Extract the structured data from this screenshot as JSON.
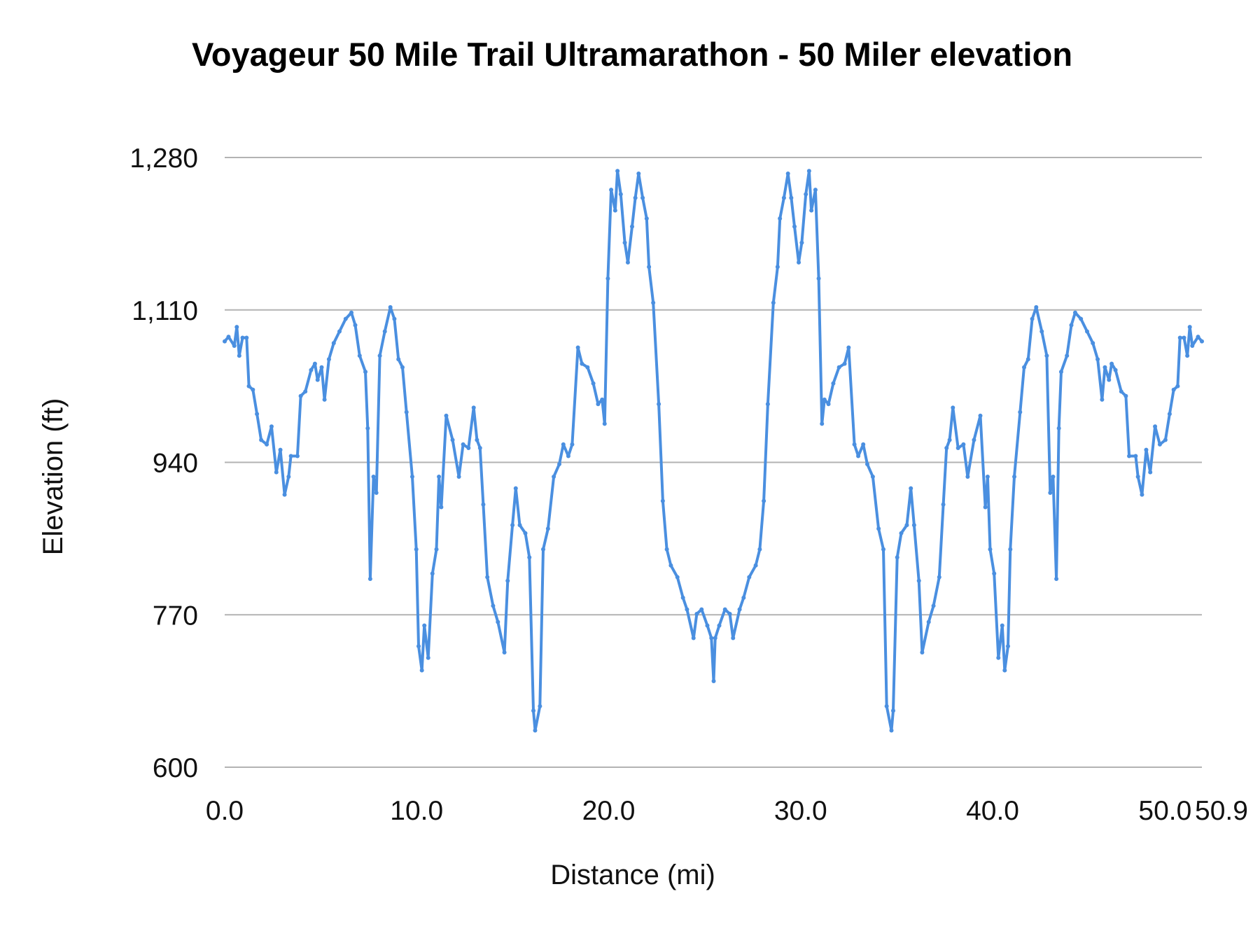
{
  "chart_data": {
    "type": "line",
    "title": "Voyageur 50 Mile Trail Ultramarathon - 50 Miler elevation",
    "xlabel": "Distance (mi)",
    "ylabel": "Elevation (ft)",
    "xlim": [
      0,
      50.9
    ],
    "ylim": [
      600,
      1280
    ],
    "x_ticks": [
      "0.0",
      "10.0",
      "20.0",
      "30.0",
      "40.0",
      "50.0",
      "50.9"
    ],
    "x_tick_values": [
      0,
      10,
      20,
      30,
      40,
      50,
      50.9
    ],
    "y_ticks": [
      "600",
      "770",
      "940",
      "1,110",
      "1,280"
    ],
    "y_tick_values": [
      600,
      770,
      940,
      1110,
      1280
    ],
    "grid": "horizontal",
    "legend": "none",
    "line_color": "#4a8fe0",
    "grid_color": "#b3b3b3",
    "points": [
      [
        0,
        1075
      ],
      [
        0.2,
        1080
      ],
      [
        0.5,
        1070
      ],
      [
        0.63,
        1091
      ],
      [
        0.76,
        1059
      ],
      [
        0.93,
        1079
      ],
      [
        1.14,
        1079
      ],
      [
        1.26,
        1025
      ],
      [
        1.47,
        1021
      ],
      [
        1.68,
        994
      ],
      [
        1.9,
        965
      ],
      [
        2.19,
        960
      ],
      [
        2.44,
        980
      ],
      [
        2.69,
        929
      ],
      [
        2.9,
        954
      ],
      [
        3.12,
        904
      ],
      [
        3.33,
        924
      ],
      [
        3.45,
        947
      ],
      [
        3.79,
        947
      ],
      [
        3.96,
        1014
      ],
      [
        4.2,
        1019
      ],
      [
        4.5,
        1043
      ],
      [
        4.7,
        1050
      ],
      [
        4.84,
        1032
      ],
      [
        5.05,
        1046
      ],
      [
        5.2,
        1010
      ],
      [
        5.43,
        1055
      ],
      [
        5.68,
        1073
      ],
      [
        5.98,
        1086
      ],
      [
        6.3,
        1100
      ],
      [
        6.6,
        1107
      ],
      [
        6.8,
        1093
      ],
      [
        7.03,
        1059
      ],
      [
        7.33,
        1041
      ],
      [
        7.45,
        978
      ],
      [
        7.58,
        810
      ],
      [
        7.75,
        924
      ],
      [
        7.9,
        906
      ],
      [
        8.08,
        1059
      ],
      [
        8.34,
        1086
      ],
      [
        8.63,
        1113
      ],
      [
        8.84,
        1100
      ],
      [
        9.05,
        1055
      ],
      [
        9.26,
        1046
      ],
      [
        9.47,
        996
      ],
      [
        9.77,
        924
      ],
      [
        9.98,
        843
      ],
      [
        10.1,
        735
      ],
      [
        10.27,
        708
      ],
      [
        10.4,
        758
      ],
      [
        10.6,
        722
      ],
      [
        10.82,
        816
      ],
      [
        11.03,
        843
      ],
      [
        11.16,
        924
      ],
      [
        11.28,
        890
      ],
      [
        11.54,
        992
      ],
      [
        11.87,
        965
      ],
      [
        12.2,
        924
      ],
      [
        12.42,
        960
      ],
      [
        12.7,
        956
      ],
      [
        12.97,
        1001
      ],
      [
        13.14,
        965
      ],
      [
        13.3,
        956
      ],
      [
        13.47,
        893
      ],
      [
        13.68,
        812
      ],
      [
        13.98,
        780
      ],
      [
        14.23,
        762
      ],
      [
        14.57,
        728
      ],
      [
        14.74,
        808
      ],
      [
        14.99,
        870
      ],
      [
        15.16,
        911
      ],
      [
        15.37,
        870
      ],
      [
        15.66,
        861
      ],
      [
        15.87,
        834
      ],
      [
        16.08,
        663
      ],
      [
        16.17,
        641
      ],
      [
        16.42,
        668
      ],
      [
        16.59,
        843
      ],
      [
        16.84,
        866
      ],
      [
        17.14,
        924
      ],
      [
        17.43,
        938
      ],
      [
        17.64,
        960
      ],
      [
        17.9,
        947
      ],
      [
        18.1,
        960
      ],
      [
        18.4,
        1068
      ],
      [
        18.61,
        1050
      ],
      [
        18.9,
        1046
      ],
      [
        19.2,
        1028
      ],
      [
        19.45,
        1005
      ],
      [
        19.66,
        1010
      ],
      [
        19.79,
        983
      ],
      [
        19.96,
        1145
      ],
      [
        20.13,
        1244
      ],
      [
        20.34,
        1221
      ],
      [
        20.46,
        1265
      ],
      [
        20.63,
        1239
      ],
      [
        20.84,
        1185
      ],
      [
        21.0,
        1163
      ],
      [
        21.22,
        1203
      ],
      [
        21.39,
        1235
      ],
      [
        21.56,
        1262
      ],
      [
        21.77,
        1235
      ],
      [
        21.98,
        1212
      ],
      [
        22.1,
        1158
      ],
      [
        22.32,
        1118
      ],
      [
        22.61,
        1005
      ],
      [
        22.82,
        897
      ],
      [
        23.03,
        843
      ],
      [
        23.24,
        825
      ],
      [
        23.58,
        812
      ],
      [
        23.87,
        789
      ],
      [
        24.08,
        776
      ],
      [
        24.42,
        744
      ],
      [
        24.59,
        771
      ],
      [
        24.84,
        776
      ],
      [
        25.14,
        758
      ],
      [
        25.35,
        744
      ],
      [
        25.47,
        696
      ],
      [
        25.55,
        744
      ],
      [
        25.76,
        758
      ],
      [
        26.06,
        776
      ],
      [
        26.31,
        771
      ],
      [
        26.48,
        744
      ],
      [
        26.82,
        776
      ],
      [
        27.03,
        789
      ],
      [
        27.32,
        812
      ],
      [
        27.66,
        825
      ],
      [
        27.87,
        843
      ],
      [
        28.08,
        897
      ],
      [
        28.29,
        1005
      ],
      [
        28.58,
        1118
      ],
      [
        28.8,
        1158
      ],
      [
        28.92,
        1212
      ],
      [
        29.13,
        1235
      ],
      [
        29.34,
        1262
      ],
      [
        29.51,
        1235
      ],
      [
        29.68,
        1203
      ],
      [
        29.9,
        1163
      ],
      [
        30.06,
        1185
      ],
      [
        30.27,
        1239
      ],
      [
        30.44,
        1265
      ],
      [
        30.56,
        1221
      ],
      [
        30.77,
        1244
      ],
      [
        30.94,
        1145
      ],
      [
        31.11,
        983
      ],
      [
        31.24,
        1010
      ],
      [
        31.45,
        1005
      ],
      [
        31.7,
        1028
      ],
      [
        32.0,
        1046
      ],
      [
        32.29,
        1050
      ],
      [
        32.5,
        1068
      ],
      [
        32.8,
        960
      ],
      [
        33.0,
        947
      ],
      [
        33.26,
        960
      ],
      [
        33.47,
        938
      ],
      [
        33.76,
        924
      ],
      [
        34.06,
        866
      ],
      [
        34.31,
        843
      ],
      [
        34.48,
        668
      ],
      [
        34.73,
        641
      ],
      [
        34.82,
        663
      ],
      [
        35.03,
        834
      ],
      [
        35.24,
        861
      ],
      [
        35.53,
        870
      ],
      [
        35.74,
        911
      ],
      [
        35.91,
        870
      ],
      [
        36.16,
        808
      ],
      [
        36.33,
        728
      ],
      [
        36.67,
        762
      ],
      [
        36.92,
        780
      ],
      [
        37.22,
        812
      ],
      [
        37.43,
        893
      ],
      [
        37.6,
        956
      ],
      [
        37.76,
        965
      ],
      [
        37.93,
        1001
      ],
      [
        38.2,
        956
      ],
      [
        38.48,
        960
      ],
      [
        38.7,
        924
      ],
      [
        39.03,
        965
      ],
      [
        39.36,
        992
      ],
      [
        39.62,
        890
      ],
      [
        39.74,
        924
      ],
      [
        39.87,
        843
      ],
      [
        40.08,
        816
      ],
      [
        40.3,
        722
      ],
      [
        40.5,
        758
      ],
      [
        40.63,
        708
      ],
      [
        40.8,
        735
      ],
      [
        40.92,
        843
      ],
      [
        41.13,
        924
      ],
      [
        41.43,
        996
      ],
      [
        41.64,
        1046
      ],
      [
        41.85,
        1055
      ],
      [
        42.06,
        1100
      ],
      [
        42.27,
        1113
      ],
      [
        42.56,
        1086
      ],
      [
        42.82,
        1059
      ],
      [
        43.0,
        906
      ],
      [
        43.15,
        924
      ],
      [
        43.32,
        810
      ],
      [
        43.45,
        978
      ],
      [
        43.57,
        1041
      ],
      [
        43.87,
        1059
      ],
      [
        44.1,
        1093
      ],
      [
        44.3,
        1107
      ],
      [
        44.6,
        1100
      ],
      [
        44.92,
        1086
      ],
      [
        45.22,
        1073
      ],
      [
        45.47,
        1055
      ],
      [
        45.7,
        1010
      ],
      [
        45.85,
        1046
      ],
      [
        46.06,
        1032
      ],
      [
        46.2,
        1050
      ],
      [
        46.4,
        1043
      ],
      [
        46.7,
        1019
      ],
      [
        46.94,
        1014
      ],
      [
        47.11,
        947
      ],
      [
        47.45,
        947
      ],
      [
        47.57,
        924
      ],
      [
        47.78,
        904
      ],
      [
        48.0,
        954
      ],
      [
        48.21,
        929
      ],
      [
        48.46,
        980
      ],
      [
        48.71,
        960
      ],
      [
        49.0,
        965
      ],
      [
        49.22,
        994
      ],
      [
        49.43,
        1021
      ],
      [
        49.64,
        1025
      ],
      [
        49.76,
        1079
      ],
      [
        49.97,
        1079
      ],
      [
        50.14,
        1059
      ],
      [
        50.27,
        1091
      ],
      [
        50.4,
        1070
      ],
      [
        50.7,
        1080
      ],
      [
        50.9,
        1075
      ]
    ]
  }
}
